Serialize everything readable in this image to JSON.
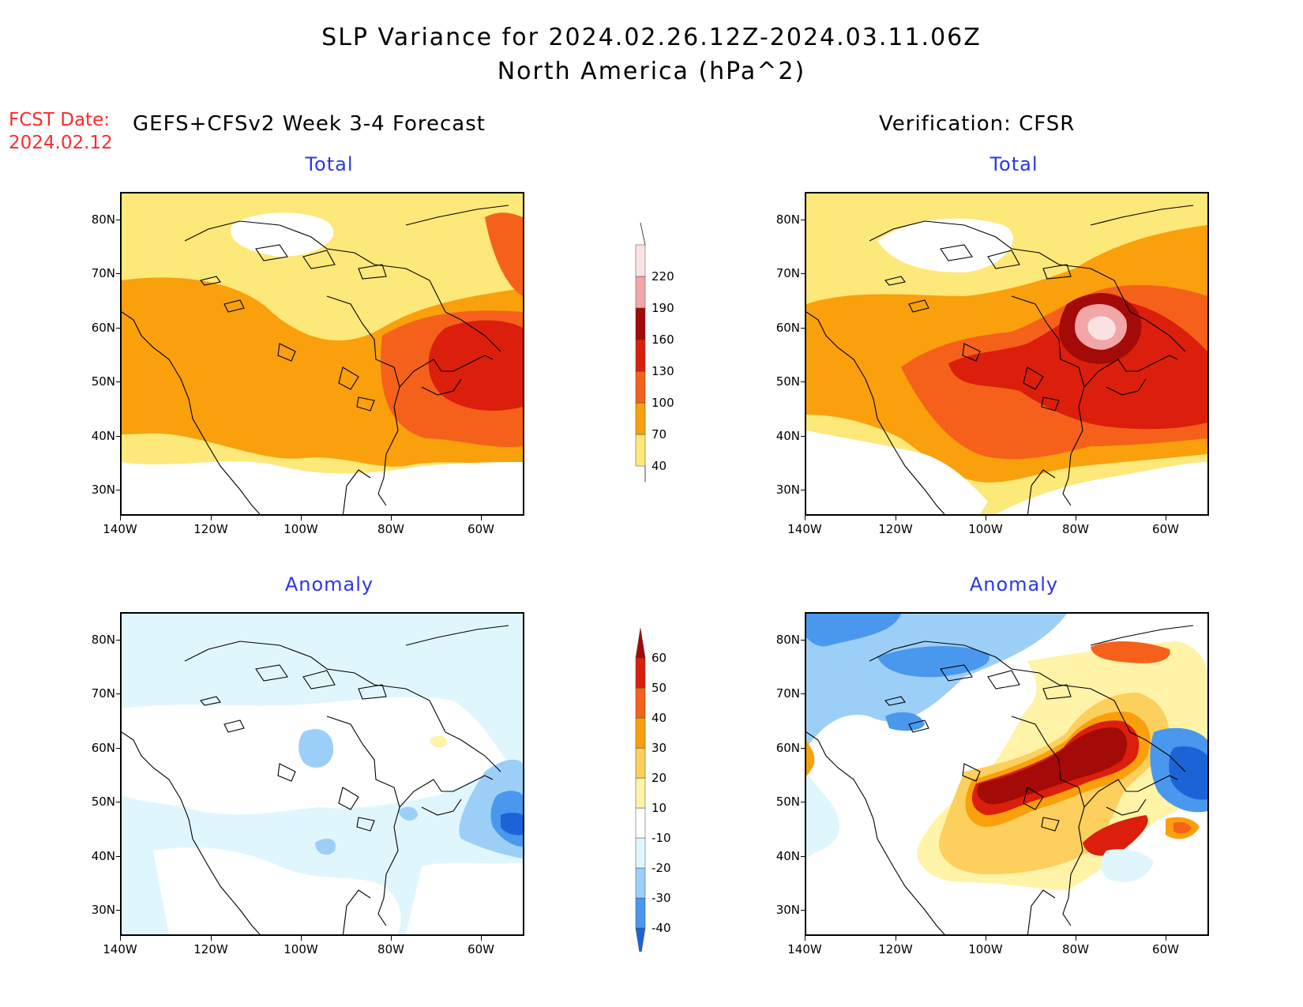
{
  "title_line1": "SLP Variance for 2024.02.26.12Z-2024.03.11.06Z",
  "title_line2": "North America (hPa^2)",
  "fcst_date_label": "FCST Date:",
  "fcst_date_value": "2024.02.12",
  "left_header": "GEFS+CFSv2 Week 3-4 Forecast",
  "right_header": "Verification: CFSR",
  "panels": {
    "fc_total_title": "Total",
    "ver_total_title": "Total",
    "fc_anom_title": "Anomaly",
    "ver_anom_title": "Anomaly"
  },
  "lat_ticks": [
    "80N",
    "70N",
    "60N",
    "50N",
    "40N",
    "30N"
  ],
  "lon_ticks": [
    "140W",
    "120W",
    "100W",
    "80W",
    "60W"
  ],
  "total_colorbar": {
    "levels": [
      "40",
      "70",
      "100",
      "130",
      "160",
      "190",
      "220"
    ],
    "colors": [
      "#fde87a",
      "#f9a00c",
      "#f5611b",
      "#db1f0c",
      "#a30a08",
      "#f2a6a8",
      "#fbe2e2"
    ]
  },
  "anomaly_colorbar": {
    "levels": [
      "-40",
      "-30",
      "-20",
      "-10",
      "10",
      "20",
      "30",
      "40",
      "50",
      "60"
    ],
    "colors": [
      "#1c63d8",
      "#4a97ee",
      "#9ccff8",
      "#e0f6fd",
      "#ffffff",
      "#fff3a8",
      "#fdcf5c",
      "#f9a00c",
      "#f5611b",
      "#db1f0c",
      "#a30a08"
    ]
  },
  "colors": {
    "title_red": "#ff2a2a",
    "subtitle_blue": "#2a38e8"
  }
}
